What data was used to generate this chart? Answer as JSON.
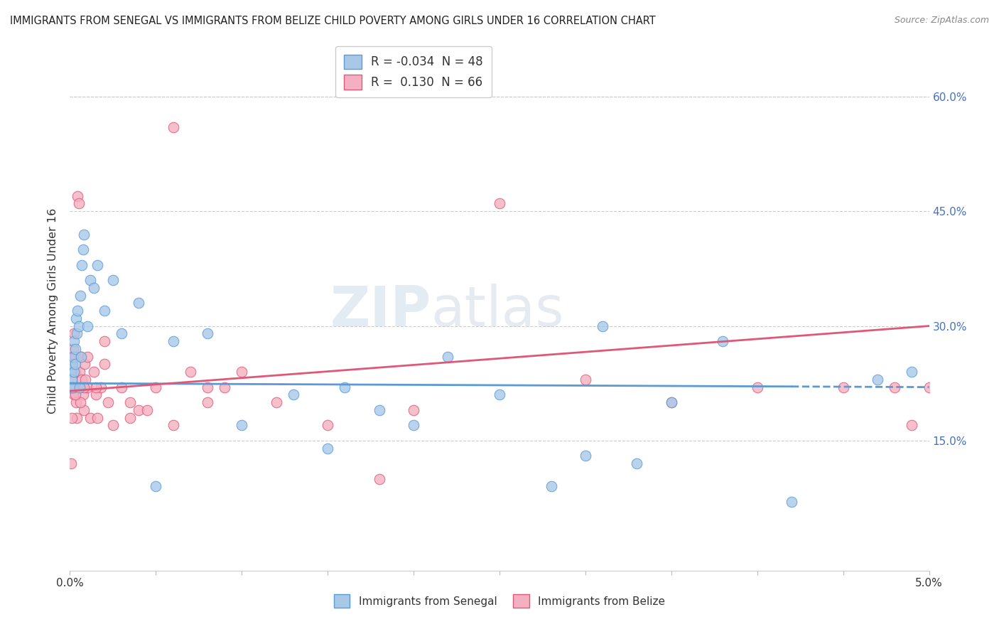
{
  "title": "IMMIGRANTS FROM SENEGAL VS IMMIGRANTS FROM BELIZE CHILD POVERTY AMONG GIRLS UNDER 16 CORRELATION CHART",
  "source": "Source: ZipAtlas.com",
  "ylabel": "Child Poverty Among Girls Under 16",
  "ylabel_ticks": [
    "15.0%",
    "30.0%",
    "45.0%",
    "60.0%"
  ],
  "ylabel_tick_vals": [
    0.15,
    0.3,
    0.45,
    0.6
  ],
  "xlim": [
    0.0,
    0.05
  ],
  "ylim": [
    -0.02,
    0.66
  ],
  "color_senegal": "#a8c8e8",
  "color_belize": "#f4b0c0",
  "color_line_senegal": "#5b9bd5",
  "color_line_belize": "#e05878",
  "background_color": "#ffffff",
  "senegal_x": [
    5e-05,
    8e-05,
    0.0001,
    0.00012,
    0.00015,
    0.0002,
    0.00022,
    0.00025,
    0.0003,
    0.00032,
    0.00035,
    0.0004,
    0.00045,
    0.0005,
    0.00055,
    0.0006,
    0.00065,
    0.0007,
    0.00075,
    0.0008,
    0.001,
    0.0012,
    0.0014,
    0.0016,
    0.002,
    0.0025,
    0.003,
    0.004,
    0.006,
    0.008,
    0.01,
    0.013,
    0.016,
    0.018,
    0.022,
    0.025,
    0.028,
    0.031,
    0.038,
    0.042,
    0.047,
    0.049,
    0.03,
    0.035,
    0.033,
    0.02,
    0.015,
    0.005
  ],
  "senegal_y": [
    0.22,
    0.24,
    0.23,
    0.25,
    0.22,
    0.26,
    0.24,
    0.28,
    0.27,
    0.25,
    0.31,
    0.29,
    0.32,
    0.3,
    0.22,
    0.34,
    0.26,
    0.38,
    0.4,
    0.42,
    0.3,
    0.36,
    0.35,
    0.38,
    0.32,
    0.36,
    0.29,
    0.33,
    0.28,
    0.29,
    0.17,
    0.21,
    0.22,
    0.19,
    0.26,
    0.21,
    0.09,
    0.3,
    0.28,
    0.07,
    0.23,
    0.24,
    0.13,
    0.2,
    0.12,
    0.17,
    0.14,
    0.09
  ],
  "belize_x": [
    3e-05,
    6e-05,
    0.0001,
    0.00012,
    0.00015,
    0.0002,
    0.00022,
    0.00025,
    0.0003,
    0.00032,
    0.00035,
    0.0004,
    0.00045,
    0.0005,
    0.00055,
    0.0006,
    0.00065,
    0.0007,
    0.00075,
    0.0008,
    0.00085,
    0.0009,
    0.001,
    0.0012,
    0.0014,
    0.0015,
    0.0016,
    0.0018,
    0.002,
    0.0022,
    0.0025,
    0.003,
    0.0035,
    0.004,
    0.005,
    0.006,
    0.007,
    0.008,
    0.009,
    0.01,
    0.012,
    0.015,
    0.018,
    0.02,
    0.025,
    0.03,
    0.035,
    0.04,
    0.045,
    0.048,
    0.049,
    0.05,
    0.0035,
    0.0045,
    0.006,
    0.008,
    0.002,
    0.0015,
    0.001,
    0.0008,
    0.0006,
    0.0004,
    0.0003,
    0.0002,
    0.0001,
    5e-05
  ],
  "belize_y": [
    0.24,
    0.22,
    0.26,
    0.23,
    0.25,
    0.27,
    0.21,
    0.29,
    0.24,
    0.26,
    0.2,
    0.22,
    0.47,
    0.46,
    0.24,
    0.22,
    0.26,
    0.23,
    0.21,
    0.19,
    0.25,
    0.23,
    0.22,
    0.18,
    0.24,
    0.21,
    0.18,
    0.22,
    0.28,
    0.2,
    0.17,
    0.22,
    0.18,
    0.19,
    0.22,
    0.56,
    0.24,
    0.2,
    0.22,
    0.24,
    0.2,
    0.17,
    0.1,
    0.19,
    0.46,
    0.23,
    0.2,
    0.22,
    0.22,
    0.22,
    0.17,
    0.22,
    0.2,
    0.19,
    0.17,
    0.22,
    0.25,
    0.22,
    0.26,
    0.22,
    0.2,
    0.18,
    0.21,
    0.22,
    0.18,
    0.12
  ]
}
